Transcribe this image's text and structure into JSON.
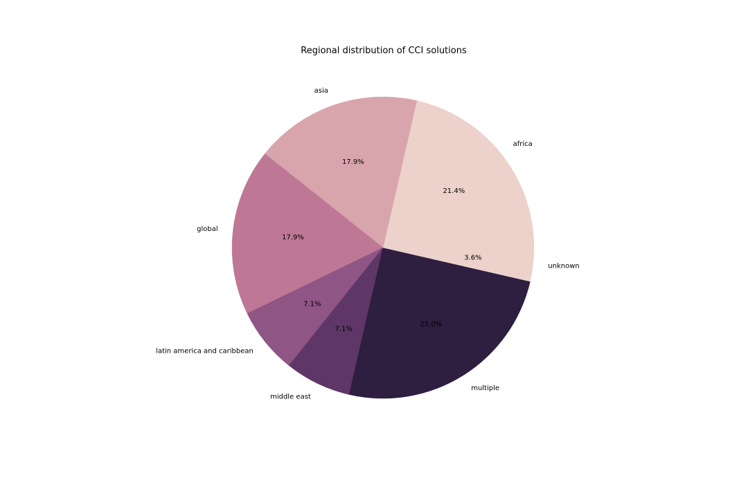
{
  "chart_data": {
    "type": "pie",
    "title": "Regional distribution of CCI solutions",
    "start_angle_deg": 0,
    "direction": "counterclockwise",
    "slices": [
      {
        "label": "africa",
        "value": 21.4,
        "pct_text": "21.4%",
        "color": "#ecd2cb"
      },
      {
        "label": "asia",
        "value": 17.9,
        "pct_text": "17.9%",
        "color": "#d9a5ad"
      },
      {
        "label": "global",
        "value": 17.9,
        "pct_text": "17.9%",
        "color": "#be7896"
      },
      {
        "label": "latin america and caribbean",
        "value": 7.1,
        "pct_text": "7.1%",
        "color": "#8f5584"
      },
      {
        "label": "middle east",
        "value": 7.1,
        "pct_text": "7.1%",
        "color": "#5e3667"
      },
      {
        "label": "multiple",
        "value": 25.0,
        "pct_text": "25.0%",
        "color": "#2e1e3f"
      },
      {
        "label": "unknown",
        "value": 3.6,
        "pct_text": "3.6%",
        "color": "#ecd2cb"
      }
    ]
  }
}
